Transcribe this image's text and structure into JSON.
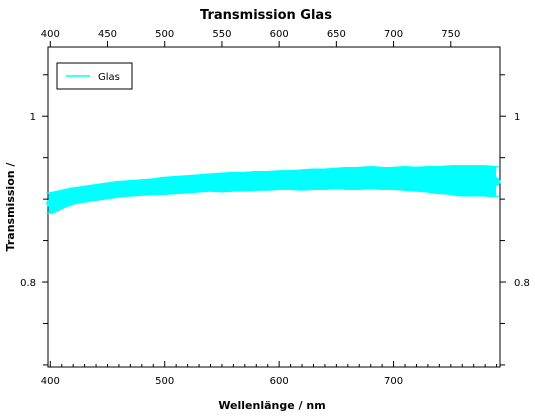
{
  "chart_data": {
    "type": "line",
    "title": "Transmission Glas",
    "xlabel": "Wellenlänge / nm",
    "ylabel": "Transmission /",
    "xlim": [
      398,
      793
    ],
    "ylim": [
      0.6975,
      1.0835
    ],
    "x_ticks_bottom": [
      400,
      500,
      600,
      700
    ],
    "x_ticks_top": [
      400,
      450,
      500,
      550,
      600,
      650,
      700,
      750
    ],
    "y_ticks_labeled": [
      0.8,
      1
    ],
    "y_tick_labels": [
      "0.8",
      "1"
    ],
    "y_ticks_minor": [
      0.7,
      0.75,
      0.85,
      0.9,
      0.95,
      1.05
    ],
    "grid": false,
    "legend_position": "top-left",
    "series": [
      {
        "name": "Glas",
        "color": "#00ffff",
        "x": [
          400,
          410,
          420,
          430,
          440,
          450,
          460,
          470,
          480,
          490,
          500,
          510,
          520,
          530,
          540,
          550,
          560,
          570,
          580,
          590,
          600,
          610,
          620,
          630,
          640,
          650,
          660,
          670,
          680,
          690,
          700,
          710,
          720,
          730,
          740,
          750,
          760,
          770,
          780,
          790
        ],
        "y": [
          0.895,
          0.9,
          0.904,
          0.906,
          0.908,
          0.91,
          0.912,
          0.913,
          0.914,
          0.915,
          0.916,
          0.917,
          0.918,
          0.919,
          0.92,
          0.92,
          0.921,
          0.921,
          0.922,
          0.922,
          0.923,
          0.923,
          0.923,
          0.924,
          0.924,
          0.925,
          0.925,
          0.925,
          0.926,
          0.925,
          0.925,
          0.925,
          0.924,
          0.924,
          0.923,
          0.923,
          0.922,
          0.922,
          0.922,
          0.921
        ],
        "error": [
          0.012,
          0.01,
          0.009,
          0.009,
          0.009,
          0.009,
          0.009,
          0.009,
          0.009,
          0.009,
          0.01,
          0.01,
          0.01,
          0.01,
          0.01,
          0.011,
          0.011,
          0.011,
          0.011,
          0.011,
          0.011,
          0.011,
          0.012,
          0.012,
          0.012,
          0.012,
          0.013,
          0.013,
          0.013,
          0.013,
          0.013,
          0.014,
          0.014,
          0.015,
          0.016,
          0.017,
          0.018,
          0.018,
          0.018,
          0.018
        ]
      }
    ]
  }
}
